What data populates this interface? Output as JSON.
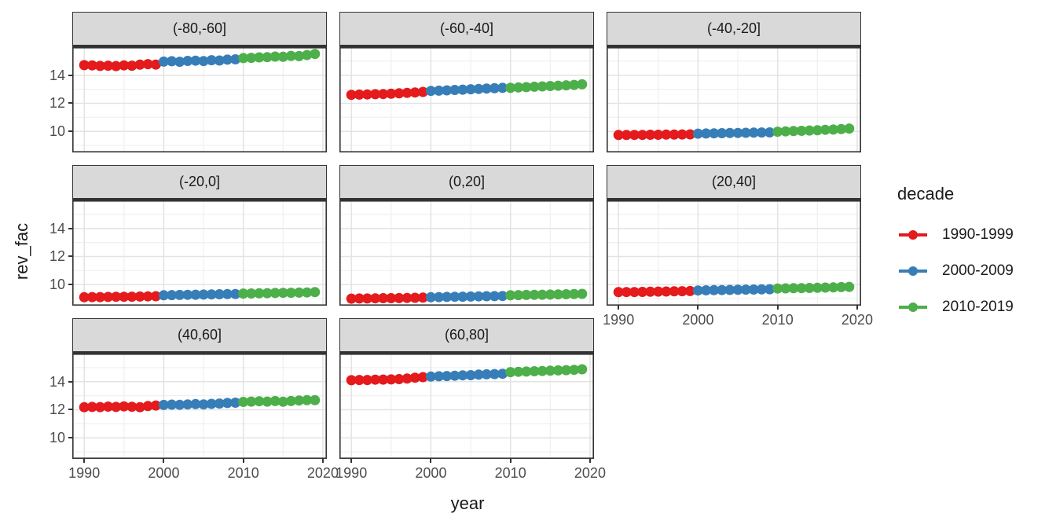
{
  "chart_data": {
    "type": "scatter",
    "title": "",
    "xlabel": "year",
    "ylabel": "rev_fac",
    "grid": true,
    "x": [
      1990,
      1991,
      1992,
      1993,
      1994,
      1995,
      1996,
      1997,
      1998,
      1999,
      2000,
      2001,
      2002,
      2003,
      2004,
      2005,
      2006,
      2007,
      2008,
      2009,
      2010,
      2011,
      2012,
      2013,
      2014,
      2015,
      2016,
      2017,
      2018,
      2019
    ],
    "x_ticks": [
      1990,
      2000,
      2010,
      2020
    ],
    "x_minor_ticks": [
      1995,
      2005,
      2015
    ],
    "xlim": [
      1988.5,
      2020.5
    ],
    "y_ticks": [
      10,
      12,
      14
    ],
    "y_minor_ticks": [
      9,
      11,
      13,
      15
    ],
    "ylim": [
      8.5,
      16.0
    ],
    "legend": {
      "title": "decade",
      "position": "right",
      "entries": [
        {
          "label": "1990-1999",
          "color": "#E41A1C"
        },
        {
          "label": "2000-2009",
          "color": "#377EB8"
        },
        {
          "label": "2010-2019",
          "color": "#4DAF4A"
        }
      ]
    },
    "facets": [
      {
        "label": "(-80,-60]",
        "row": 0,
        "col": 0,
        "show_y_axis": true,
        "show_x_axis": false,
        "values": [
          14.72,
          14.7,
          14.66,
          14.68,
          14.65,
          14.7,
          14.68,
          14.75,
          14.79,
          14.76,
          14.97,
          15.0,
          14.96,
          15.02,
          15.04,
          15.01,
          15.07,
          15.05,
          15.11,
          15.13,
          15.22,
          15.24,
          15.27,
          15.29,
          15.33,
          15.31,
          15.38,
          15.36,
          15.44,
          15.52
        ]
      },
      {
        "label": "(-60,-40]",
        "row": 0,
        "col": 1,
        "show_y_axis": false,
        "show_x_axis": false,
        "values": [
          12.6,
          12.62,
          12.63,
          12.65,
          12.66,
          12.68,
          12.71,
          12.74,
          12.77,
          12.81,
          12.88,
          12.9,
          12.92,
          12.95,
          12.97,
          13.0,
          13.02,
          13.05,
          13.07,
          13.1,
          13.1,
          13.13,
          13.15,
          13.18,
          13.2,
          13.23,
          13.25,
          13.28,
          13.31,
          13.35
        ]
      },
      {
        "label": "(-40,-20]",
        "row": 0,
        "col": 2,
        "show_y_axis": false,
        "show_x_axis": false,
        "values": [
          9.74,
          9.74,
          9.75,
          9.75,
          9.76,
          9.76,
          9.77,
          9.77,
          9.78,
          9.79,
          9.84,
          9.85,
          9.86,
          9.87,
          9.88,
          9.89,
          9.9,
          9.91,
          9.92,
          9.93,
          9.98,
          10.0,
          10.02,
          10.04,
          10.06,
          10.08,
          10.11,
          10.13,
          10.16,
          10.2
        ]
      },
      {
        "label": "(-20,0]",
        "row": 1,
        "col": 0,
        "show_y_axis": true,
        "show_x_axis": false,
        "values": [
          9.1,
          9.11,
          9.11,
          9.12,
          9.13,
          9.13,
          9.14,
          9.15,
          9.16,
          9.17,
          9.24,
          9.25,
          9.26,
          9.27,
          9.28,
          9.29,
          9.3,
          9.31,
          9.32,
          9.33,
          9.36,
          9.37,
          9.38,
          9.39,
          9.4,
          9.41,
          9.42,
          9.43,
          9.44,
          9.46
        ]
      },
      {
        "label": "(0,20]",
        "row": 1,
        "col": 1,
        "show_y_axis": false,
        "show_x_axis": false,
        "values": [
          9.0,
          9.01,
          9.01,
          9.02,
          9.03,
          9.03,
          9.04,
          9.05,
          9.06,
          9.07,
          9.1,
          9.11,
          9.12,
          9.13,
          9.14,
          9.15,
          9.16,
          9.17,
          9.18,
          9.19,
          9.24,
          9.25,
          9.26,
          9.27,
          9.28,
          9.29,
          9.3,
          9.31,
          9.32,
          9.34
        ]
      },
      {
        "label": "(20,40]",
        "row": 1,
        "col": 2,
        "show_y_axis": false,
        "show_x_axis": true,
        "values": [
          9.46,
          9.47,
          9.47,
          9.48,
          9.49,
          9.5,
          9.51,
          9.52,
          9.53,
          9.54,
          9.58,
          9.59,
          9.6,
          9.61,
          9.62,
          9.63,
          9.64,
          9.65,
          9.66,
          9.67,
          9.72,
          9.73,
          9.74,
          9.75,
          9.76,
          9.77,
          9.79,
          9.8,
          9.82,
          9.84
        ]
      },
      {
        "label": "(40,60]",
        "row": 2,
        "col": 0,
        "show_y_axis": true,
        "show_x_axis": true,
        "values": [
          12.18,
          12.2,
          12.19,
          12.22,
          12.2,
          12.24,
          12.21,
          12.18,
          12.26,
          12.3,
          12.34,
          12.36,
          12.35,
          12.38,
          12.4,
          12.38,
          12.42,
          12.44,
          12.48,
          12.5,
          12.56,
          12.58,
          12.6,
          12.58,
          12.62,
          12.57,
          12.62,
          12.66,
          12.68,
          12.68
        ]
      },
      {
        "label": "(60,80]",
        "row": 2,
        "col": 1,
        "show_y_axis": false,
        "show_x_axis": true,
        "values": [
          14.1,
          14.12,
          14.12,
          14.14,
          14.15,
          14.16,
          14.18,
          14.22,
          14.28,
          14.32,
          14.36,
          14.38,
          14.4,
          14.42,
          14.45,
          14.46,
          14.5,
          14.52,
          14.54,
          14.56,
          14.68,
          14.7,
          14.72,
          14.74,
          14.76,
          14.78,
          14.8,
          14.82,
          14.84,
          14.88
        ]
      }
    ]
  },
  "colors": {
    "strip_bg": "#D9D9D9",
    "panel_bg": "#FFFFFF",
    "panel_border": "#333333",
    "grid_major": "#E3E3E3",
    "grid_minor": "#F0F0F0",
    "tick_mark": "#333333",
    "tick_label": "#4D4D4D"
  }
}
